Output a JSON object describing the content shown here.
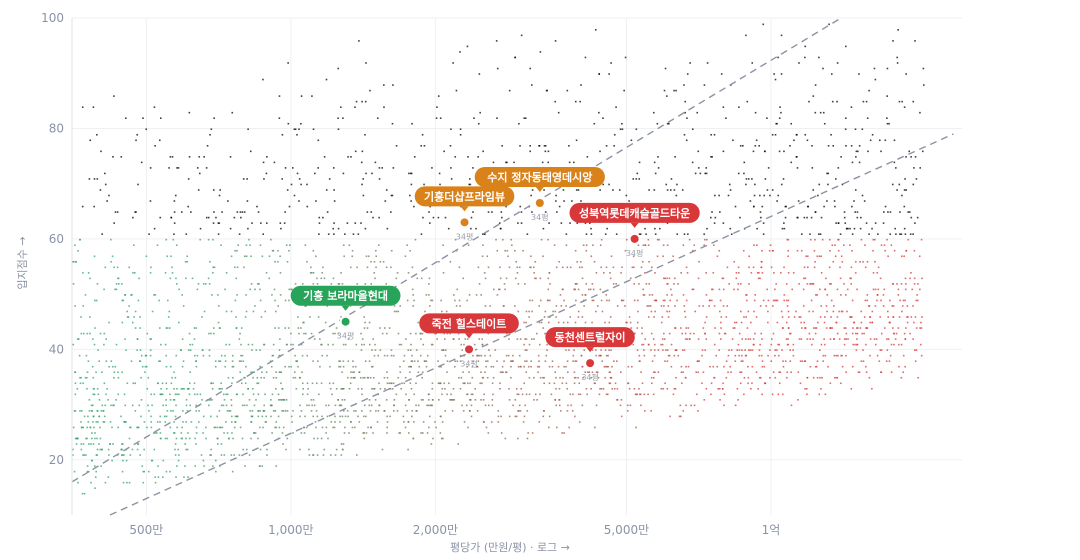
{
  "chart_data": {
    "type": "scatter",
    "xlabel": "평당가 (만원/평) · 로그 →",
    "ylabel": "입지점수 →",
    "x_scale": "log",
    "xlim": [
      350,
      25000
    ],
    "ylim": [
      10,
      100
    ],
    "x_ticks": [
      {
        "value": 500,
        "label": "500만"
      },
      {
        "value": 1000,
        "label": "1,000만"
      },
      {
        "value": 2000,
        "label": "2,000만"
      },
      {
        "value": 5000,
        "label": "5,000만"
      },
      {
        "value": 10000,
        "label": "1억"
      }
    ],
    "y_ticks": [
      {
        "value": 20,
        "label": "20"
      },
      {
        "value": 40,
        "label": "40"
      },
      {
        "value": 60,
        "label": "60"
      },
      {
        "value": 80,
        "label": "80"
      },
      {
        "value": 100,
        "label": "100"
      }
    ],
    "grid": true,
    "background_points": {
      "color_low_price": "#2ea36a",
      "color_high_price": "#d9383a",
      "color_mid": "#b8762a",
      "approx_count": 3500
    },
    "reference_lines": [
      {
        "points": [
          [
            350,
            16
          ],
          [
            14000,
            100
          ]
        ],
        "style": "dashed"
      },
      {
        "points": [
          [
            420,
            10
          ],
          [
            24000,
            79
          ]
        ],
        "style": "dashed"
      }
    ],
    "highlighted": [
      {
        "name": "수지 정자동태영데시앙",
        "x": 3300,
        "y": 66.5,
        "color": "#d9821a",
        "sub": "34평"
      },
      {
        "name": "기흥더샵프라임뷰",
        "x": 2300,
        "y": 63,
        "color": "#d9821a",
        "sub": "34평"
      },
      {
        "name": "성북역롯데캐슬골드타운",
        "x": 5200,
        "y": 60,
        "color": "#d9383a",
        "sub": "34평"
      },
      {
        "name": "기흥 보라마을현대",
        "x": 1300,
        "y": 45,
        "color": "#27a35a",
        "sub": "34평"
      },
      {
        "name": "죽전 힐스테이트",
        "x": 2350,
        "y": 40,
        "color": "#d9383a",
        "sub": "34평"
      },
      {
        "name": "동천센트럴자이",
        "x": 4200,
        "y": 37.5,
        "color": "#d9383a",
        "sub": "34평"
      }
    ]
  }
}
